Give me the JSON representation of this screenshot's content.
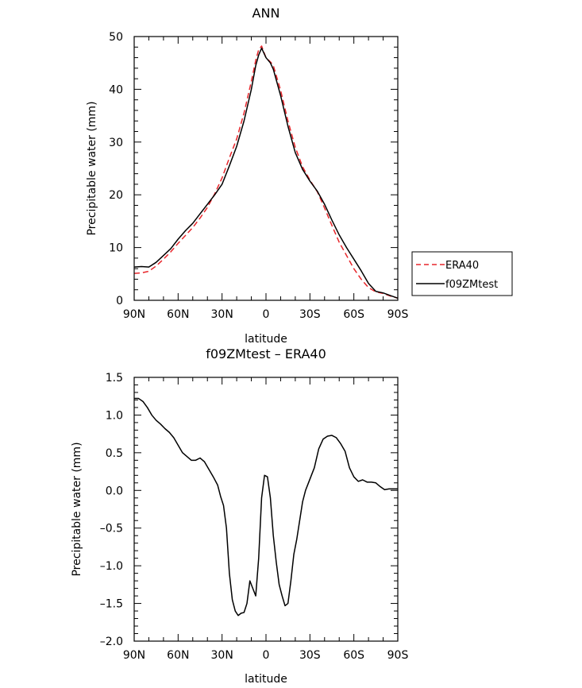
{
  "chart_data": [
    {
      "type": "line",
      "title": "ANN",
      "xlabel": "latitude",
      "ylabel": "Precipitable water (mm)",
      "x_tick_labels": [
        "90N",
        "60N",
        "30N",
        "0",
        "30S",
        "60S",
        "90S"
      ],
      "x_ticks": [
        90,
        60,
        30,
        0,
        -30,
        -60,
        -90
      ],
      "xlim": [
        90,
        -90
      ],
      "y_ticks": [
        0,
        10,
        20,
        30,
        40,
        50
      ],
      "ylim": [
        0,
        50
      ],
      "legend_position": "right",
      "series": [
        {
          "name": "ERA40",
          "color": "#e8262b",
          "dash": "dashed",
          "x": [
            90,
            85,
            80,
            75,
            70,
            65,
            60,
            55,
            50,
            45,
            40,
            35,
            30,
            25,
            20,
            15,
            10,
            7,
            5,
            3,
            0,
            -3,
            -5,
            -10,
            -15,
            -20,
            -25,
            -30,
            -35,
            -40,
            -45,
            -50,
            -55,
            -60,
            -65,
            -70,
            -75,
            -80,
            -85,
            -90
          ],
          "y": [
            5.1,
            5.2,
            5.5,
            6.5,
            7.8,
            9.2,
            10.8,
            12.3,
            13.8,
            15.6,
            17.6,
            20.2,
            23.2,
            27.0,
            30.6,
            35.5,
            41.5,
            45.5,
            47.5,
            48.2,
            46.0,
            45.2,
            44.5,
            39.8,
            34.0,
            29.0,
            25.3,
            22.8,
            20.6,
            17.5,
            14.2,
            11.0,
            8.5,
            6.0,
            4.0,
            2.4,
            1.6,
            1.3,
            0.8,
            0.4
          ]
        },
        {
          "name": "f09ZMtest",
          "color": "#000000",
          "dash": "solid",
          "x": [
            90,
            85,
            80,
            75,
            70,
            65,
            60,
            55,
            50,
            45,
            40,
            35,
            30,
            25,
            20,
            15,
            10,
            7,
            5,
            3,
            0,
            -3,
            -5,
            -10,
            -15,
            -20,
            -25,
            -30,
            -35,
            -40,
            -45,
            -50,
            -55,
            -60,
            -65,
            -70,
            -75,
            -80,
            -85,
            -90
          ],
          "y": [
            6.3,
            6.4,
            6.3,
            7.2,
            8.5,
            9.8,
            11.6,
            13.2,
            14.6,
            16.4,
            18.2,
            20.0,
            22.0,
            25.5,
            29.2,
            34.0,
            40.0,
            44.5,
            46.5,
            47.8,
            46.0,
            45.0,
            43.8,
            38.8,
            33.0,
            28.0,
            24.8,
            22.6,
            20.7,
            18.2,
            15.2,
            12.4,
            10.0,
            7.8,
            5.6,
            3.2,
            1.7,
            1.4,
            0.9,
            0.4
          ]
        }
      ]
    },
    {
      "type": "line",
      "title": "f09ZMtest – ERA40",
      "xlabel": "latitude",
      "ylabel": "Precipitable water (mm)",
      "x_tick_labels": [
        "90N",
        "60N",
        "30N",
        "0",
        "30S",
        "60S",
        "90S"
      ],
      "x_ticks": [
        90,
        60,
        30,
        0,
        -30,
        -60,
        -90
      ],
      "xlim": [
        90,
        -90
      ],
      "y_tick_labels": [
        "1.5",
        "1.0",
        "0.5",
        "0.0",
        "–0.5",
        "–1.0",
        "–1.5",
        "–2.0"
      ],
      "y_ticks": [
        1.5,
        1.0,
        0.5,
        0.0,
        -0.5,
        -1.0,
        -1.5,
        -2.0
      ],
      "ylim": [
        -2.0,
        1.5
      ],
      "series": [
        {
          "color": "#000000",
          "dash": "solid",
          "x": [
            90,
            87,
            84,
            81,
            78,
            75,
            72,
            69,
            66,
            63,
            60,
            57,
            54,
            51,
            48,
            45,
            42,
            39,
            36,
            33,
            31,
            29,
            27,
            25,
            23,
            21,
            19,
            17,
            15,
            13,
            11,
            9,
            7,
            5,
            3,
            1,
            -1,
            -3,
            -5,
            -7,
            -9,
            -11,
            -13,
            -15,
            -17,
            -19,
            -21,
            -23,
            -25,
            -27,
            -29,
            -31,
            -33,
            -36,
            -39,
            -42,
            -45,
            -48,
            -51,
            -54,
            -57,
            -60,
            -63,
            -66,
            -69,
            -72,
            -75,
            -78,
            -81,
            -84,
            -87,
            -90
          ],
          "y": [
            1.22,
            1.22,
            1.18,
            1.1,
            1.0,
            0.93,
            0.88,
            0.82,
            0.77,
            0.7,
            0.6,
            0.5,
            0.45,
            0.4,
            0.4,
            0.43,
            0.38,
            0.28,
            0.18,
            0.07,
            -0.08,
            -0.2,
            -0.5,
            -1.1,
            -1.45,
            -1.6,
            -1.66,
            -1.63,
            -1.62,
            -1.5,
            -1.2,
            -1.3,
            -1.4,
            -0.9,
            -0.1,
            0.2,
            0.18,
            -0.1,
            -0.6,
            -0.95,
            -1.25,
            -1.4,
            -1.53,
            -1.5,
            -1.2,
            -0.85,
            -0.65,
            -0.4,
            -0.15,
            0.0,
            0.1,
            0.2,
            0.3,
            0.55,
            0.68,
            0.72,
            0.73,
            0.7,
            0.62,
            0.52,
            0.3,
            0.18,
            0.12,
            0.14,
            0.11,
            0.11,
            0.1,
            0.05,
            0.01,
            0.02,
            0.02,
            0.02
          ]
        }
      ]
    }
  ]
}
